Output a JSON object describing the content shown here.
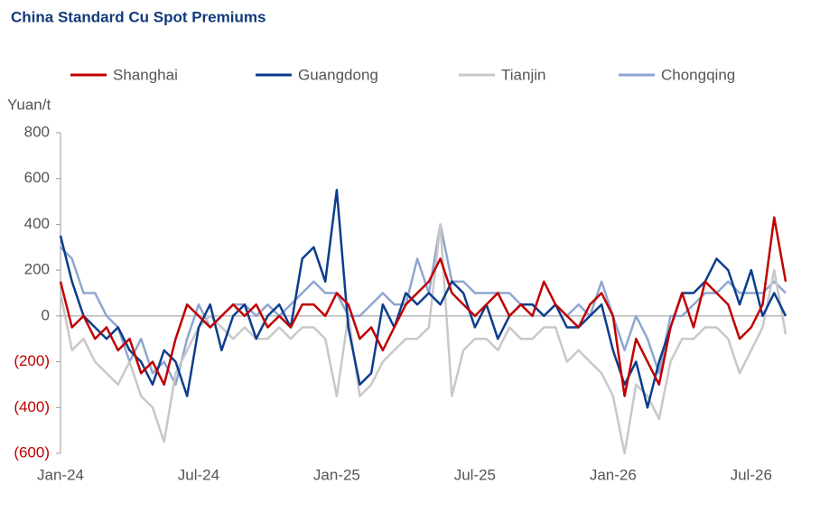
{
  "chart_data": {
    "type": "line",
    "title": "China Standard Cu Spot Premiums",
    "y_label": "Yuan/t",
    "legend": "top",
    "negative_tick_color": "#c00000",
    "x": [
      0,
      0.5,
      1,
      1.5,
      2,
      2.5,
      3,
      3.5,
      4,
      4.5,
      5,
      5.5,
      6,
      6.5,
      7,
      7.5,
      8,
      8.5,
      9,
      9.5,
      10,
      10.5,
      11,
      11.5,
      12,
      12.5,
      13,
      13.5,
      14,
      14.5,
      15,
      15.5,
      16,
      16.5,
      17,
      17.5,
      18,
      18.5,
      19,
      19.5,
      20,
      20.5,
      21,
      21.5,
      22,
      22.5,
      23,
      23.5,
      24,
      24.5,
      25,
      25.5,
      26,
      26.5,
      27,
      27.5,
      28,
      28.5,
      29,
      29.5,
      30,
      30.5,
      31,
      31.5
    ],
    "xlim": [
      0,
      31.5
    ],
    "xticks": [
      {
        "value": 0,
        "label": "Jan-24"
      },
      {
        "value": 6,
        "label": "Jul-24"
      },
      {
        "value": 12,
        "label": "Jan-25"
      },
      {
        "value": 18,
        "label": "Jul-25"
      },
      {
        "value": 24,
        "label": "Jan-26"
      },
      {
        "value": 30,
        "label": "Jul-26"
      }
    ],
    "ylim": [
      -600,
      800
    ],
    "yticks": [
      {
        "value": -600,
        "label": "(600)"
      },
      {
        "value": -400,
        "label": "(400)"
      },
      {
        "value": -200,
        "label": "(200)"
      },
      0,
      200,
      400,
      600,
      800
    ],
    "series": [
      {
        "name": "Shanghai",
        "color": "#c00000",
        "values": [
          150,
          -50,
          0,
          -100,
          -50,
          -150,
          -100,
          -250,
          -200,
          -300,
          -100,
          50,
          0,
          -50,
          0,
          50,
          0,
          50,
          -50,
          0,
          -50,
          50,
          50,
          0,
          100,
          50,
          -100,
          -50,
          -150,
          -50,
          50,
          100,
          150,
          250,
          100,
          50,
          0,
          50,
          100,
          0,
          50,
          0,
          150,
          50,
          0,
          -50,
          50,
          100,
          0,
          -350,
          -100,
          -200,
          -300,
          -50,
          100,
          -50,
          150,
          100,
          50,
          -100,
          -50,
          50,
          430,
          150
        ]
      },
      {
        "name": "Guangdong",
        "color": "#0b3d8c",
        "values": [
          350,
          150,
          0,
          -50,
          -100,
          -50,
          -150,
          -200,
          -300,
          -150,
          -200,
          -350,
          -50,
          50,
          -150,
          0,
          50,
          -100,
          0,
          50,
          -50,
          250,
          300,
          150,
          550,
          -50,
          -300,
          -250,
          50,
          -50,
          100,
          50,
          100,
          50,
          150,
          100,
          -50,
          50,
          -100,
          0,
          50,
          50,
          0,
          50,
          -50,
          -50,
          0,
          50,
          -150,
          -300,
          -200,
          -400,
          -200,
          -50,
          100,
          100,
          150,
          250,
          200,
          50,
          200,
          0,
          100,
          0
        ]
      },
      {
        "name": "Tianjin",
        "color": "#c8c8c8",
        "values": [
          100,
          -150,
          -100,
          -200,
          -250,
          -300,
          -200,
          -350,
          -400,
          -550,
          -250,
          -150,
          -50,
          0,
          -50,
          -100,
          -50,
          -100,
          -100,
          -50,
          -100,
          -50,
          -50,
          -100,
          -350,
          0,
          -350,
          -300,
          -200,
          -150,
          -100,
          -100,
          -50,
          400,
          -350,
          -150,
          -100,
          -100,
          -150,
          -50,
          -100,
          -100,
          -50,
          -50,
          -200,
          -150,
          -200,
          -250,
          -350,
          -600,
          -300,
          -350,
          -450,
          -200,
          -100,
          -100,
          -50,
          -50,
          -100,
          -250,
          -150,
          -50,
          200,
          -80
        ]
      },
      {
        "name": "Chongqing",
        "color": "#8fa6d0",
        "values": [
          300,
          250,
          100,
          100,
          0,
          -50,
          -200,
          -100,
          -250,
          -200,
          -300,
          -100,
          50,
          -50,
          0,
          50,
          50,
          0,
          50,
          0,
          50,
          100,
          150,
          100,
          100,
          0,
          0,
          50,
          100,
          50,
          50,
          250,
          100,
          400,
          150,
          150,
          100,
          100,
          100,
          100,
          50,
          50,
          0,
          50,
          0,
          50,
          0,
          150,
          0,
          -150,
          0,
          -100,
          -250,
          0,
          0,
          50,
          100,
          100,
          150,
          100,
          100,
          100,
          150,
          100
        ]
      }
    ]
  }
}
